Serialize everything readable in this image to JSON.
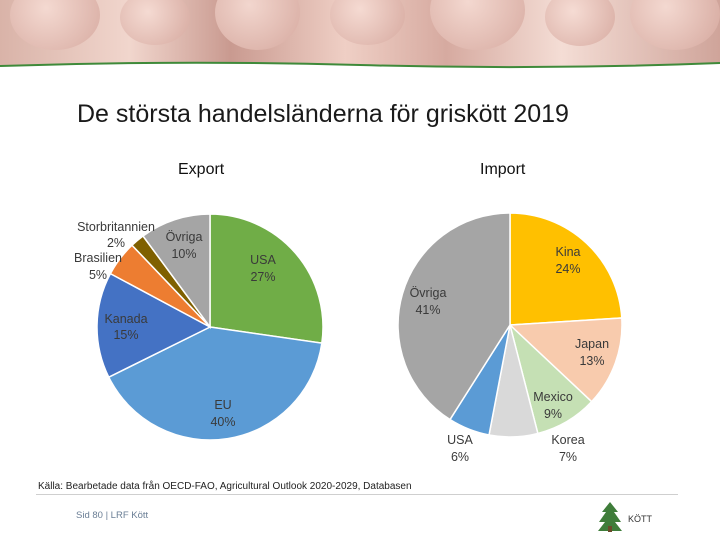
{
  "title": "De största handelsländerna för griskött 2019",
  "source": "Källa: Bearbetade data från OECD-FAO, Agricultural Outlook 2020-2029, Databasen",
  "footer": "Sid 80 | LRF Kött",
  "logo_text": "KÖTT",
  "colors": {
    "green": "#70ad47",
    "blue": "#5b9bd5",
    "darkblue": "#4472c4",
    "orange": "#ed7d31",
    "brown": "#7f6000",
    "grey": "#a5a5a5",
    "gold": "#ffc000",
    "peach": "#f8cbad",
    "lightgreen": "#c5e0b4",
    "lightgrey": "#d9d9d9"
  },
  "chart_data": [
    {
      "type": "pie",
      "title": "Export",
      "slices": [
        {
          "label": "USA",
          "value": 27,
          "value_label": "27%",
          "color": "#70ad47"
        },
        {
          "label": "EU",
          "value": 40,
          "value_label": "40%",
          "color": "#5b9bd5"
        },
        {
          "label": "Kanada",
          "value": 15,
          "value_label": "15%",
          "color": "#4472c4"
        },
        {
          "label": "Brasilien",
          "value": 5,
          "value_label": "5%",
          "color": "#ed7d31"
        },
        {
          "label": "Storbritannien",
          "value": 2,
          "value_label": "2%",
          "color": "#7f6000"
        },
        {
          "label": "Övriga",
          "value": 10,
          "value_label": "10%",
          "color": "#a5a5a5"
        }
      ]
    },
    {
      "type": "pie",
      "title": "Import",
      "slices": [
        {
          "label": "Kina",
          "value": 24,
          "value_label": "24%",
          "color": "#ffc000"
        },
        {
          "label": "Japan",
          "value": 13,
          "value_label": "13%",
          "color": "#f8cbad"
        },
        {
          "label": "Mexico",
          "value": 9,
          "value_label": "9%",
          "color": "#c5e0b4"
        },
        {
          "label": "Korea",
          "value": 7,
          "value_label": "7%",
          "color": "#d9d9d9"
        },
        {
          "label": "USA",
          "value": 6,
          "value_label": "6%",
          "color": "#5b9bd5"
        },
        {
          "label": "Övriga",
          "value": 41,
          "value_label": "41%",
          "color": "#a5a5a5"
        }
      ]
    }
  ]
}
